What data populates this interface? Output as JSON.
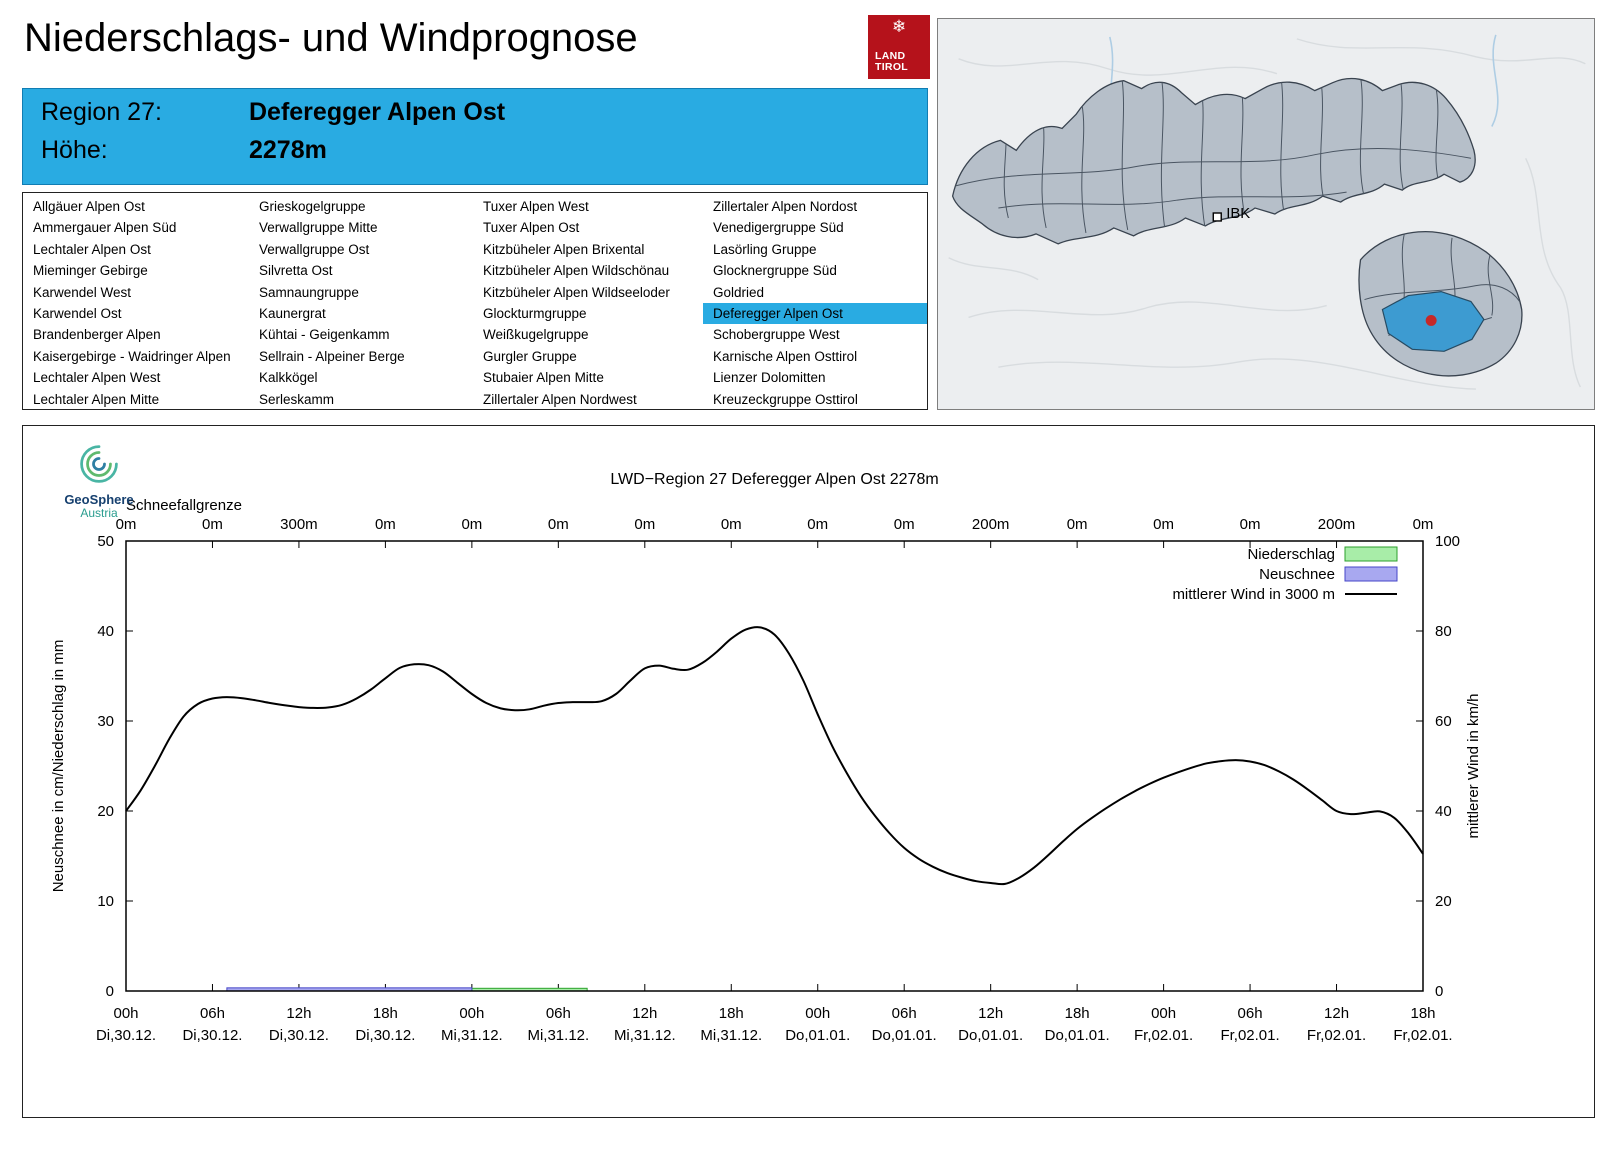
{
  "header": {
    "title": "Niederschlags- und Windprognose",
    "logo": {
      "line1": "LAND",
      "line2": "TIROL",
      "snowflake_icon": "❄"
    }
  },
  "banner": {
    "region_label": "Region 27:",
    "region_name": "Deferegger Alpen Ost",
    "altitude_label": "Höhe:",
    "altitude_value": "2278m",
    "accent_color": "#29abe2"
  },
  "region_list": {
    "selected": "Deferegger Alpen Ost",
    "columns": [
      [
        "Allgäuer Alpen Ost",
        "Ammergauer Alpen Süd",
        "Lechtaler Alpen Ost",
        "Mieminger Gebirge",
        "Karwendel West",
        "Karwendel Ost",
        "Brandenberger Alpen",
        "Kaisergebirge - Waidringer Alpen",
        "Lechtaler Alpen West",
        "Lechtaler Alpen Mitte"
      ],
      [
        "Grieskogelgruppe",
        "Verwallgruppe Mitte",
        "Verwallgruppe Ost",
        "Silvretta Ost",
        "Samnaungruppe",
        "Kaunergrat",
        "Kühtai - Geigenkamm",
        "Sellrain - Alpeiner Berge",
        "Kalkkögel",
        "Serleskamm"
      ],
      [
        "Tuxer Alpen West",
        "Tuxer Alpen Ost",
        "Kitzbüheler Alpen Brixental",
        "Kitzbüheler Alpen Wildschönau",
        "Kitzbüheler Alpen Wildseeloder",
        "Glockturmgruppe",
        "Weißkugelgruppe",
        "Gurgler Gruppe",
        "Stubaier Alpen Mitte",
        "Zillertaler Alpen Nordwest"
      ],
      [
        "Zillertaler Alpen Nordost",
        "Venedigergruppe Süd",
        "Lasörling Gruppe",
        "Glocknergruppe Süd",
        "Goldried",
        "Deferegger Alpen Ost",
        "Schobergruppe West",
        "Karnische Alpen Osttirol",
        "Lienzer Dolomitten",
        "Kreuzeckgruppe Osttirol"
      ]
    ]
  },
  "map": {
    "city_label": "IBK",
    "highlight_color": "#3d9bd1",
    "marker_color": "#c62828"
  },
  "chart_data": {
    "type": "line",
    "title": "LWD−Region 27 Deferegger Alpen Ost 2278m",
    "source_logo": {
      "name": "GeoSphere",
      "sub": "Austria"
    },
    "top_axis": {
      "label": "Schneefallgrenze",
      "values": [
        "0m",
        "0m",
        "300m",
        "0m",
        "0m",
        "0m",
        "0m",
        "0m",
        "0m",
        "0m",
        "200m",
        "0m",
        "0m",
        "0m",
        "200m",
        "0m"
      ]
    },
    "ylabel_left": "Neuschnee in cm/Niederschlag in mm",
    "ylabel_right": "mittlerer Wind in km/h",
    "ylim_left": [
      0,
      50
    ],
    "ylim_right": [
      0,
      100
    ],
    "y_ticks_left": [
      0,
      10,
      20,
      30,
      40,
      50
    ],
    "y_ticks_right": [
      0,
      20,
      40,
      60,
      80,
      100
    ],
    "x_range_hours": [
      0,
      90
    ],
    "x_ticks": [
      {
        "time": "00h",
        "date": "Di,30.12."
      },
      {
        "time": "06h",
        "date": "Di,30.12."
      },
      {
        "time": "12h",
        "date": "Di,30.12."
      },
      {
        "time": "18h",
        "date": "Di,30.12."
      },
      {
        "time": "00h",
        "date": "Mi,31.12."
      },
      {
        "time": "06h",
        "date": "Mi,31.12."
      },
      {
        "time": "12h",
        "date": "Mi,31.12."
      },
      {
        "time": "18h",
        "date": "Mi,31.12."
      },
      {
        "time": "00h",
        "date": "Do,01.01."
      },
      {
        "time": "06h",
        "date": "Do,01.01."
      },
      {
        "time": "12h",
        "date": "Do,01.01."
      },
      {
        "time": "18h",
        "date": "Do,01.01."
      },
      {
        "time": "00h",
        "date": "Fr,02.01."
      },
      {
        "time": "06h",
        "date": "Fr,02.01."
      },
      {
        "time": "12h",
        "date": "Fr,02.01."
      },
      {
        "time": "18h",
        "date": "Fr,02.01."
      }
    ],
    "legend": [
      {
        "label": "Niederschlag",
        "swatch": "box",
        "color": "#a8eda8",
        "border": "#2ca02c"
      },
      {
        "label": "Neuschnee",
        "swatch": "box",
        "color": "#a8a8f0",
        "border": "#4646c8"
      },
      {
        "label": "mittlerer Wind in 3000 m",
        "swatch": "line",
        "color": "#000000"
      }
    ],
    "series": [
      {
        "name": "Niederschlag",
        "type": "bar",
        "axis": "left",
        "unit": "mm",
        "color": "#a8eda8",
        "border": "#2ca02c",
        "intervals": [
          {
            "from": 24,
            "to": 32,
            "value": 0.3
          }
        ]
      },
      {
        "name": "Neuschnee",
        "type": "bar",
        "axis": "left",
        "unit": "cm",
        "color": "#a8a8f0",
        "border": "#4646c8",
        "intervals": [
          {
            "from": 7,
            "to": 24,
            "value": 0.35
          }
        ]
      },
      {
        "name": "mittlerer Wind in 3000 m",
        "type": "line",
        "axis": "right",
        "unit": "km/h",
        "color": "#000000",
        "points": [
          [
            0,
            40
          ],
          [
            1,
            44.5
          ],
          [
            2,
            50
          ],
          [
            3,
            56
          ],
          [
            4,
            61
          ],
          [
            5,
            63.8
          ],
          [
            6,
            65
          ],
          [
            7,
            65.3
          ],
          [
            8,
            65.1
          ],
          [
            9,
            64.6
          ],
          [
            10,
            64
          ],
          [
            11,
            63.5
          ],
          [
            12,
            63.1
          ],
          [
            13,
            62.9
          ],
          [
            14,
            63
          ],
          [
            15,
            63.6
          ],
          [
            16,
            65
          ],
          [
            17,
            67
          ],
          [
            18,
            69.5
          ],
          [
            19,
            71.8
          ],
          [
            20,
            72.6
          ],
          [
            21,
            72.4
          ],
          [
            22,
            71
          ],
          [
            23,
            68.5
          ],
          [
            24,
            66
          ],
          [
            25,
            64
          ],
          [
            26,
            62.8
          ],
          [
            27,
            62.4
          ],
          [
            28,
            62.6
          ],
          [
            29,
            63.4
          ],
          [
            30,
            64
          ],
          [
            31,
            64.2
          ],
          [
            32,
            64.2
          ],
          [
            33,
            64.4
          ],
          [
            34,
            66
          ],
          [
            35,
            69
          ],
          [
            36,
            71.7
          ],
          [
            37,
            72.3
          ],
          [
            38,
            71.6
          ],
          [
            39,
            71.4
          ],
          [
            40,
            72.9
          ],
          [
            41,
            75.4
          ],
          [
            42,
            78.3
          ],
          [
            43,
            80.3
          ],
          [
            44,
            80.8
          ],
          [
            45,
            79.2
          ],
          [
            46,
            75
          ],
          [
            47,
            69
          ],
          [
            48,
            61.5
          ],
          [
            49,
            54.5
          ],
          [
            50,
            48.5
          ],
          [
            51,
            43.2
          ],
          [
            52,
            38.8
          ],
          [
            53,
            35
          ],
          [
            54,
            31.8
          ],
          [
            55,
            29.4
          ],
          [
            56,
            27.6
          ],
          [
            57,
            26.2
          ],
          [
            58,
            25.2
          ],
          [
            59,
            24.4
          ],
          [
            60,
            24
          ],
          [
            61,
            23.8
          ],
          [
            62,
            25.2
          ],
          [
            63,
            27.4
          ],
          [
            64,
            30.2
          ],
          [
            65,
            33.2
          ],
          [
            66,
            36
          ],
          [
            67,
            38.4
          ],
          [
            68,
            40.6
          ],
          [
            69,
            42.6
          ],
          [
            70,
            44.4
          ],
          [
            71,
            46
          ],
          [
            72,
            47.4
          ],
          [
            73,
            48.6
          ],
          [
            74,
            49.7
          ],
          [
            75,
            50.6
          ],
          [
            76,
            51.1
          ],
          [
            77,
            51.3
          ],
          [
            78,
            51
          ],
          [
            79,
            50.2
          ],
          [
            80,
            48.8
          ],
          [
            81,
            47
          ],
          [
            82,
            44.8
          ],
          [
            83,
            42.4
          ],
          [
            84,
            40
          ],
          [
            85,
            39.3
          ],
          [
            86,
            39.6
          ],
          [
            87,
            39.9
          ],
          [
            88,
            38.5
          ],
          [
            89,
            35
          ],
          [
            90,
            30.5
          ]
        ]
      }
    ]
  }
}
